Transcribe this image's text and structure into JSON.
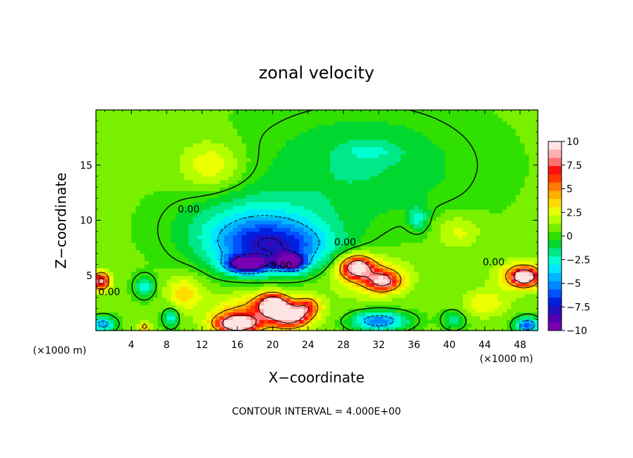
{
  "chart_data": {
    "type": "heatmap",
    "title": "zonal velocity",
    "xlabel": "X−coordinate",
    "ylabel": "Z−coordinate",
    "x_unit_left": "(×1000 m)",
    "x_unit_right": "(×1000 m)",
    "footnote": "CONTOUR INTERVAL = 4.000E+00",
    "xlim": [
      0,
      50
    ],
    "ylim": [
      0,
      20
    ],
    "x_ticks": [
      4,
      8,
      12,
      16,
      20,
      24,
      28,
      32,
      36,
      40,
      44,
      48
    ],
    "y_ticks": [
      5,
      10,
      15
    ],
    "colorbar": {
      "ticks": [
        "10",
        "7.5",
        "5",
        "2.5",
        "0",
        "−2.5",
        "−5",
        "−7.5",
        "−10"
      ],
      "colors": [
        "#ffe4e4",
        "#ffb0b0",
        "#ff7070",
        "#ff1010",
        "#ff3a00",
        "#ff7a00",
        "#ffb000",
        "#ffdc00",
        "#eaff00",
        "#b6ff00",
        "#78f000",
        "#30e000",
        "#00d830",
        "#00e888",
        "#00ffd0",
        "#00e8ff",
        "#00b8ff",
        "#0088ff",
        "#0050ff",
        "#0020e0",
        "#2010c0",
        "#5000b0",
        "#7800b0"
      ]
    },
    "contour_labels": [
      {
        "text": "0.00",
        "x": 10.5,
        "y": 10.7
      },
      {
        "text": "0.00",
        "x": 28.2,
        "y": 7.7
      },
      {
        "text": "0.00",
        "x": 45.0,
        "y": 5.9
      },
      {
        "text": "0.00",
        "x": 1.5,
        "y": 3.2
      },
      {
        "text": "−8.00",
        "x": 20.5,
        "y": 5.6
      }
    ],
    "features": [
      {
        "x": 13,
        "y": 15.0,
        "v": 2.5,
        "sx": 3.5,
        "sy": 2.2
      },
      {
        "x": 17,
        "y": 6.0,
        "v": -10,
        "sx": 2.2,
        "sy": 0.7
      },
      {
        "x": 22,
        "y": 6.2,
        "v": -9,
        "sx": 1.6,
        "sy": 0.7
      },
      {
        "x": 20,
        "y": 7.5,
        "v": -6.5,
        "sx": 6.5,
        "sy": 2.2
      },
      {
        "x": 18,
        "y": 9.5,
        "v": -3.5,
        "sx": 8.0,
        "sy": 3.0
      },
      {
        "x": 30,
        "y": 15.0,
        "v": -2.0,
        "sx": 12.0,
        "sy": 5.0
      },
      {
        "x": 31,
        "y": 16.3,
        "v": -1.5,
        "sx": 3.0,
        "sy": 0.8
      },
      {
        "x": 36.5,
        "y": 10.2,
        "v": -3.0,
        "sx": 1.0,
        "sy": 1.0
      },
      {
        "x": 29.5,
        "y": 5.8,
        "v": 9.0,
        "sx": 1.8,
        "sy": 1.0
      },
      {
        "x": 32.5,
        "y": 4.5,
        "v": 7.0,
        "sx": 1.8,
        "sy": 0.9
      },
      {
        "x": 31,
        "y": 5.0,
        "v": 3.0,
        "sx": 4.5,
        "sy": 1.8
      },
      {
        "x": 16,
        "y": 0.6,
        "v": 10.0,
        "sx": 2.5,
        "sy": 0.9
      },
      {
        "x": 20,
        "y": 2.4,
        "v": 9.5,
        "sx": 1.6,
        "sy": 0.9
      },
      {
        "x": 22,
        "y": 1.3,
        "v": 8.0,
        "sx": 2.0,
        "sy": 1.0
      },
      {
        "x": 19,
        "y": 1.8,
        "v": 4.0,
        "sx": 5.5,
        "sy": 1.6
      },
      {
        "x": 24,
        "y": 2.2,
        "v": 4.5,
        "sx": 1.2,
        "sy": 0.8
      },
      {
        "x": 32,
        "y": 0.9,
        "v": -6.5,
        "sx": 3.0,
        "sy": 0.8
      },
      {
        "x": 48.5,
        "y": 4.9,
        "v": 9.0,
        "sx": 1.5,
        "sy": 0.8
      },
      {
        "x": 48,
        "y": 5.0,
        "v": 3.0,
        "sx": 3.0,
        "sy": 1.4
      },
      {
        "x": 48.8,
        "y": 0.5,
        "v": -8.0,
        "sx": 1.2,
        "sy": 0.6
      },
      {
        "x": 0.6,
        "y": 4.5,
        "v": 9.0,
        "sx": 0.9,
        "sy": 0.8
      },
      {
        "x": 0.8,
        "y": 0.6,
        "v": -6.0,
        "sx": 1.2,
        "sy": 0.6
      },
      {
        "x": 5.5,
        "y": 4.0,
        "v": -4.0,
        "sx": 1.0,
        "sy": 0.9
      },
      {
        "x": 10,
        "y": 3.5,
        "v": 3.0,
        "sx": 2.0,
        "sy": 1.5
      },
      {
        "x": 8.5,
        "y": 1.2,
        "v": -4.0,
        "sx": 0.8,
        "sy": 0.8
      },
      {
        "x": 5.5,
        "y": 0.4,
        "v": 5.0,
        "sx": 0.6,
        "sy": 0.4
      },
      {
        "x": 40.5,
        "y": 1.0,
        "v": -3.0,
        "sx": 1.2,
        "sy": 0.8
      },
      {
        "x": 44,
        "y": 2.5,
        "v": 2.5,
        "sx": 2.5,
        "sy": 1.2
      },
      {
        "x": 41,
        "y": 9.0,
        "v": 2.0,
        "sx": 2.5,
        "sy": 1.5
      }
    ]
  }
}
